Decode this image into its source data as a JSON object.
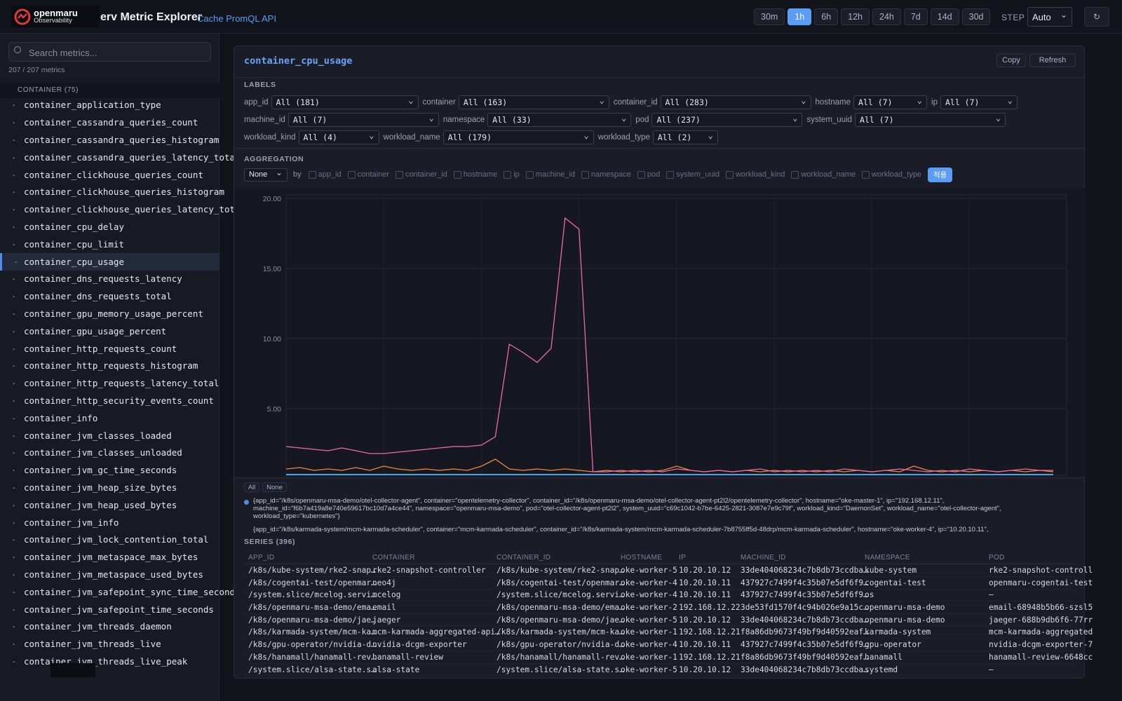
{
  "header": {
    "logo": "openmaru",
    "logo_sub": "Observability",
    "title": "erv Metric Explorer",
    "subtitle": "Cache PromQL API",
    "ranges": [
      "30m",
      "1h",
      "6h",
      "12h",
      "24h",
      "7d",
      "14d",
      "30d"
    ],
    "active_range": "1h",
    "step_label": "STEP",
    "step": "Auto"
  },
  "sidebar": {
    "search": "Search metrics...",
    "count": "207 / 207 metrics",
    "group": "CONTAINER (75)",
    "selected": "container_cpu_usage",
    "metrics": [
      "container_application_type",
      "container_cassandra_queries_count",
      "container_cassandra_queries_histogram",
      "container_cassandra_queries_latency_total",
      "container_clickhouse_queries_count",
      "container_clickhouse_queries_histogram",
      "container_clickhouse_queries_latency_total",
      "container_cpu_delay",
      "container_cpu_limit",
      "container_cpu_usage",
      "container_dns_requests_latency",
      "container_dns_requests_total",
      "container_gpu_memory_usage_percent",
      "container_gpu_usage_percent",
      "container_http_requests_count",
      "container_http_requests_histogram",
      "container_http_requests_latency_total",
      "container_http_security_events_count",
      "container_info",
      "container_jvm_classes_loaded",
      "container_jvm_classes_unloaded",
      "container_jvm_gc_time_seconds",
      "container_jvm_heap_size_bytes",
      "container_jvm_heap_used_bytes",
      "container_jvm_info",
      "container_jvm_lock_contention_total",
      "container_jvm_metaspace_max_bytes",
      "container_jvm_metaspace_used_bytes",
      "container_jvm_safepoint_sync_time_seconds",
      "container_jvm_safepoint_time_seconds",
      "container_jvm_threads_daemon",
      "container_jvm_threads_live",
      "container_jvm_threads_live_peak"
    ]
  },
  "panel": {
    "metric": "container_cpu_usage",
    "copy": "Copy",
    "refresh": "Refresh",
    "labels_title": "LABELS",
    "labels": [
      {
        "name": "app_id",
        "value": "All (181)"
      },
      {
        "name": "container",
        "value": "All (163)"
      },
      {
        "name": "container_id",
        "value": "All (283)"
      },
      {
        "name": "hostname",
        "value": "All (7)"
      },
      {
        "name": "ip",
        "value": "All (7)"
      },
      {
        "name": "machine_id",
        "value": "All (7)"
      },
      {
        "name": "namespace",
        "value": "All (33)"
      },
      {
        "name": "pod",
        "value": "All (237)"
      },
      {
        "name": "system_uuid",
        "value": "All (7)"
      },
      {
        "name": "workload_kind",
        "value": "All (4)"
      },
      {
        "name": "workload_name",
        "value": "All (179)"
      },
      {
        "name": "workload_type",
        "value": "All (2)"
      }
    ],
    "aggregation_title": "AGGREGATION",
    "aggregation": "None",
    "by": "by",
    "by_labels": [
      "app_id",
      "container",
      "container_id",
      "hostname",
      "ip",
      "machine_id",
      "namespace",
      "pod",
      "system_uuid",
      "workload_kind",
      "workload_name",
      "workload_type"
    ],
    "apply": "적용",
    "legend_all": "All",
    "legend_none": "None",
    "series_title": "SERIES (396)",
    "columns": [
      "APP_ID",
      "CONTAINER",
      "CONTAINER_ID",
      "HOSTNAME",
      "IP",
      "MACHINE_ID",
      "NAMESPACE",
      "POD"
    ],
    "rows": [
      [
        "/k8s/kube-system/rke2-snap…",
        "rke2-snapshot-controller",
        "/k8s/kube-system/rke2-snap…",
        "oke-worker-5",
        "10.20.10.12",
        "33de404068234c7b8db73ccdba…",
        "kube-system",
        "rke2-snapshot-controll"
      ],
      [
        "/k8s/cogentai-test/openmar…",
        "neo4j",
        "/k8s/cogentai-test/openmar…",
        "oke-worker-4",
        "10.20.10.11",
        "437927c7499f4c35b07e5df6f9…",
        "cogentai-test",
        "openmaru-cogentai-test"
      ],
      [
        "/system.slice/mcelog.servi…",
        "mcelog",
        "/system.slice/mcelog.servi…",
        "oke-worker-4",
        "10.20.10.11",
        "437927c7499f4c35b07e5df6f9…",
        "os",
        "–"
      ],
      [
        "/k8s/openmaru-msa-demo/ema…",
        "email",
        "/k8s/openmaru-msa-demo/ema…",
        "oke-worker-2",
        "192.168.12.22",
        "3de53fd1570f4c94b026e9a15c…",
        "openmaru-msa-demo",
        "email-68948b5b66-szsl5"
      ],
      [
        "/k8s/openmaru-msa-demo/jae…",
        "jaeger",
        "/k8s/openmaru-msa-demo/jae…",
        "oke-worker-5",
        "10.20.10.12",
        "33de404068234c7b8db73ccdba…",
        "openmaru-msa-demo",
        "jaeger-688b9db6f6-77rr"
      ],
      [
        "/k8s/karmada-system/mcm-ka…",
        "mcm-karmada-aggregated-api…",
        "/k8s/karmada-system/mcm-ka…",
        "oke-worker-1",
        "192.168.12.21",
        "f8a86db9673f49bf9d40592eaf…",
        "karmada-system",
        "mcm-karmada-aggregated"
      ],
      [
        "/k8s/gpu-operator/nvidia-d…",
        "nvidia-dcgm-exporter",
        "/k8s/gpu-operator/nvidia-d…",
        "oke-worker-4",
        "10.20.10.11",
        "437927c7499f4c35b07e5df6f9…",
        "gpu-operator",
        "nvidia-dcgm-exporter-7"
      ],
      [
        "/k8s/hanamall/hanamall-rev…",
        "hanamall-review",
        "/k8s/hanamall/hanamall-rev…",
        "oke-worker-1",
        "192.168.12.21",
        "f8a86db9673f49bf9d40592eaf…",
        "hanamall",
        "hanamall-review-6648cc"
      ],
      [
        "/system.slice/alsa-state.s…",
        "alsa-state",
        "/system.slice/alsa-state.s…",
        "oke-worker-5",
        "10.20.10.12",
        "33de404068234c7b8db73ccdba…",
        "systemd",
        "–"
      ]
    ]
  },
  "chart": {
    "type": "line",
    "ylim": [
      0.25,
      20.25
    ],
    "yticks": [
      {
        "value": 5,
        "label": "5.00"
      },
      {
        "value": 10,
        "label": "10.00"
      },
      {
        "value": 15,
        "label": "15.00"
      },
      {
        "value": 20,
        "label": "20.00"
      }
    ],
    "grid": true,
    "series": [
      {
        "name": "{app_id=\"/k8s/openmaru-msa-demo/otel-collector-agent\", container=\"opentelemetry-collector\", container_id=\"/k8s/openmaru-msa-demo/otel-collector-agent-pt2l2/opentelemetry-collector\", hostname=\"oke-master-1\", ip=\"192.168.12.11\", machine_id=\"f6b7a419a8e740e59617bc10d7a4ce44\", namespace=\"openmaru-msa-demo\", pod=\"otel-collector-agent-pt2l2\", system_uuid=\"c69c1042-b7be-6425-2821-3087e7e9c79f\", workload_kind=\"DaemonSet\", workload_name=\"otel-collector-agent\", workload_type=\"kubernetes\"}",
        "color": "#f06aa6",
        "values": [
          2.3,
          2.2,
          2.1,
          2.0,
          2.2,
          2.0,
          1.8,
          1.8,
          1.9,
          2.0,
          2.1,
          2.2,
          2.3,
          2.3,
          2.4,
          3.0,
          9.6,
          9.0,
          8.3,
          9.3,
          18.6,
          17.8,
          0.5,
          0.5,
          0.6,
          0.5,
          0.6,
          0.5,
          0.7,
          0.6,
          0.5,
          0.6,
          0.5,
          0.6,
          0.7,
          0.5,
          0.6,
          0.5,
          0.6,
          0.5,
          0.7,
          0.6,
          0.5,
          0.6,
          0.7,
          0.6,
          0.5,
          0.6,
          0.5,
          0.7,
          0.6,
          0.5,
          0.6,
          0.7,
          0.6,
          0.6
        ]
      },
      {
        "name": "{app_id=\"/k8s/karmada-system/mcm-karmada-scheduler\", container=\"mcm-karmada-scheduler\", container_id=\"/k8s/karmada-system/mcm-karmada-scheduler-7b8755ff5d-48drp/mcm-karmada-scheduler\", hostname=\"oke-worker-4\", ip=\"10.20.10.11\",",
        "color": "#f0883e",
        "values": [
          0.7,
          0.8,
          0.6,
          0.7,
          0.6,
          0.8,
          0.6,
          0.9,
          0.7,
          0.6,
          0.7,
          0.6,
          0.7,
          0.6,
          0.9,
          1.4,
          0.7,
          0.6,
          0.7,
          0.6,
          0.7,
          0.6,
          0.5,
          0.6,
          0.5,
          0.6,
          0.5,
          0.6,
          0.9,
          0.6,
          0.5,
          0.6,
          0.5,
          0.6,
          0.5,
          0.6,
          0.5,
          0.6,
          0.5,
          0.6,
          0.5,
          0.6,
          0.5,
          0.6,
          0.5,
          0.9,
          0.6,
          0.5,
          0.6,
          0.5,
          0.6,
          0.5,
          0.6,
          0.5,
          0.6,
          0.5
        ]
      }
    ]
  }
}
